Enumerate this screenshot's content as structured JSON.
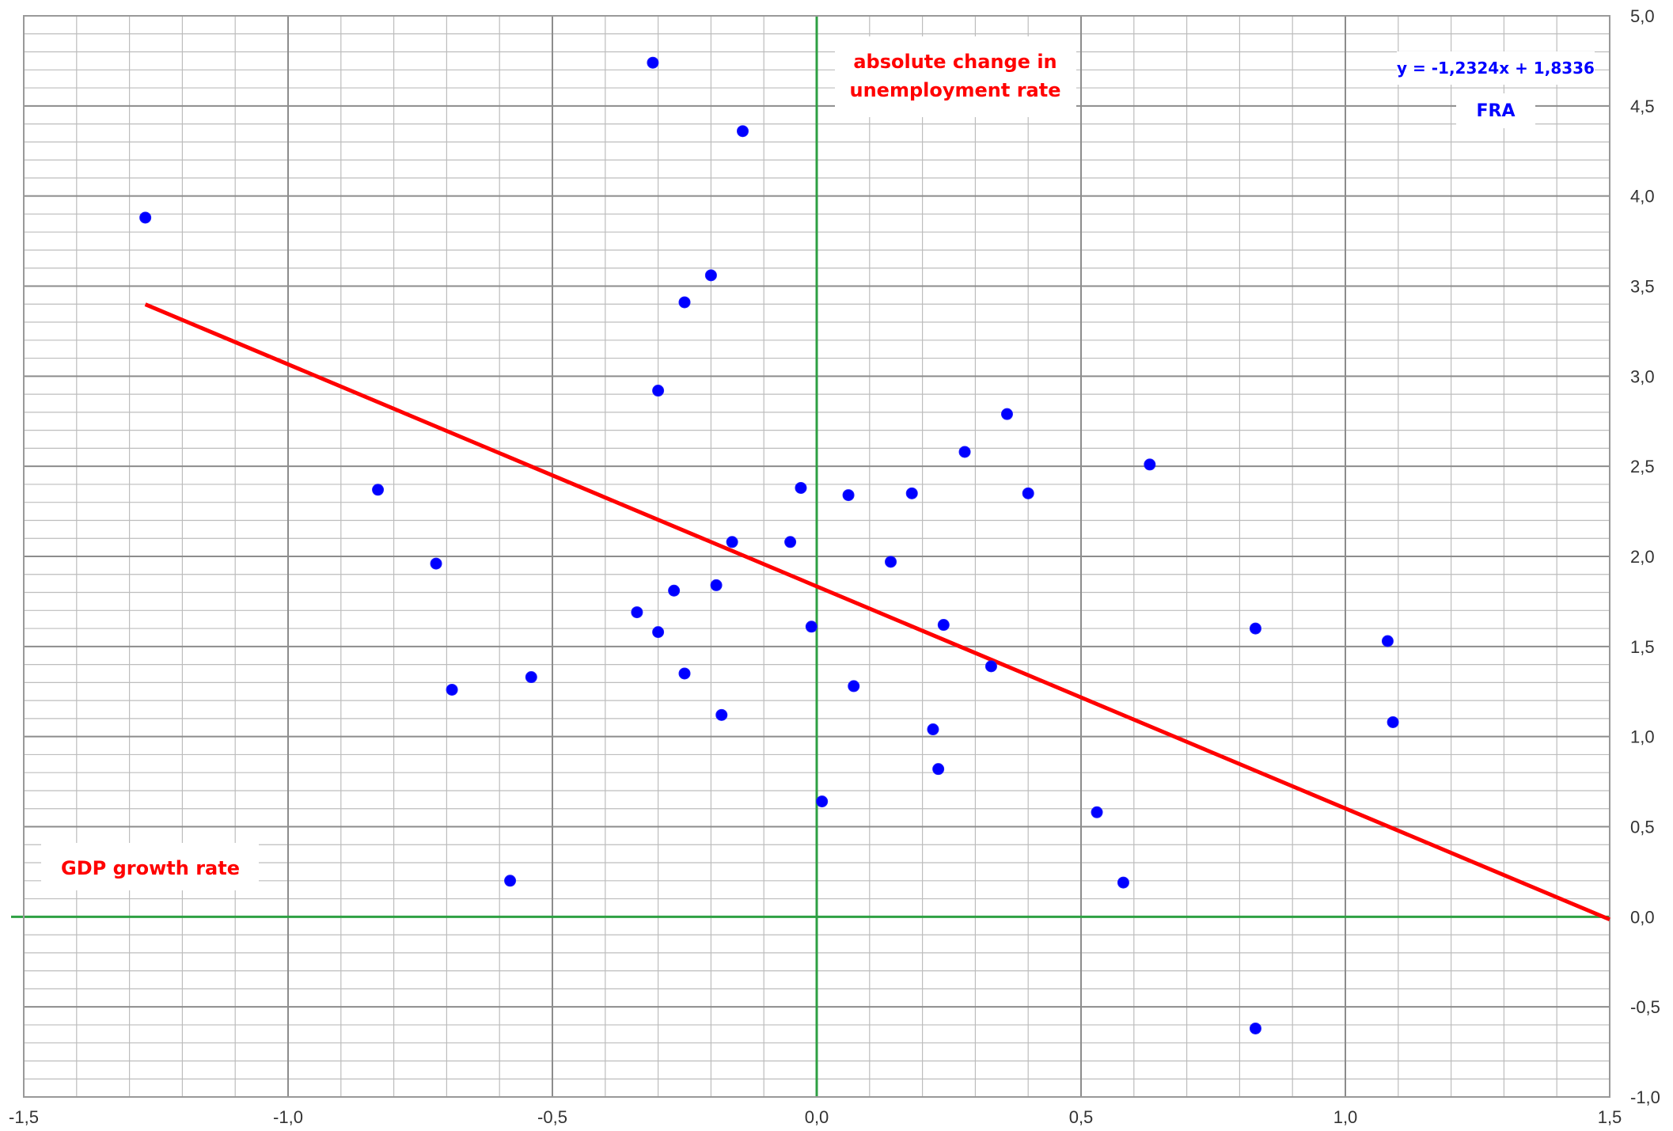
{
  "chart_data": {
    "type": "scatter",
    "title": "",
    "xlabel": "GDP growth rate",
    "ylabel": "absolute change in unemployment rate",
    "xlim": [
      -1.5,
      1.5
    ],
    "ylim": [
      -1.0,
      5.0
    ],
    "x_ticks": [
      "-1,5",
      "-1,0",
      "-0,5",
      "0,0",
      "0,5",
      "1,0",
      "1,5"
    ],
    "y_ticks": [
      "-1,0",
      "-0,5",
      "0,0",
      "0,5",
      "1,0",
      "1,5",
      "2,0",
      "2,5",
      "3,0",
      "3,5",
      "4,0",
      "4,5",
      "5,0"
    ],
    "grid": true,
    "series": [
      {
        "name": "FRA",
        "color": "#0000ff",
        "points": [
          {
            "x": -1.27,
            "y": 3.88
          },
          {
            "x": -0.31,
            "y": 4.74
          },
          {
            "x": -0.14,
            "y": 4.36
          },
          {
            "x": -0.2,
            "y": 3.56
          },
          {
            "x": -0.25,
            "y": 3.41
          },
          {
            "x": -0.3,
            "y": 2.92
          },
          {
            "x": -0.83,
            "y": 2.37
          },
          {
            "x": -0.72,
            "y": 1.96
          },
          {
            "x": -0.69,
            "y": 1.26
          },
          {
            "x": -0.54,
            "y": 1.33
          },
          {
            "x": -0.58,
            "y": 0.2
          },
          {
            "x": -0.34,
            "y": 1.69
          },
          {
            "x": -0.3,
            "y": 1.58
          },
          {
            "x": -0.27,
            "y": 1.81
          },
          {
            "x": -0.25,
            "y": 1.35
          },
          {
            "x": -0.19,
            "y": 1.84
          },
          {
            "x": -0.18,
            "y": 1.12
          },
          {
            "x": -0.16,
            "y": 2.08
          },
          {
            "x": -0.05,
            "y": 2.08
          },
          {
            "x": -0.03,
            "y": 2.38
          },
          {
            "x": -0.01,
            "y": 1.61
          },
          {
            "x": 0.01,
            "y": 0.64
          },
          {
            "x": 0.06,
            "y": 2.34
          },
          {
            "x": 0.07,
            "y": 1.28
          },
          {
            "x": 0.14,
            "y": 1.97
          },
          {
            "x": 0.18,
            "y": 2.35
          },
          {
            "x": 0.22,
            "y": 1.04
          },
          {
            "x": 0.23,
            "y": 0.82
          },
          {
            "x": 0.24,
            "y": 1.62
          },
          {
            "x": 0.28,
            "y": 2.58
          },
          {
            "x": 0.33,
            "y": 1.39
          },
          {
            "x": 0.36,
            "y": 2.79
          },
          {
            "x": 0.4,
            "y": 2.35
          },
          {
            "x": 0.53,
            "y": 0.58
          },
          {
            "x": 0.58,
            "y": 0.19
          },
          {
            "x": 0.63,
            "y": 2.51
          },
          {
            "x": 0.83,
            "y": 1.6
          },
          {
            "x": 0.83,
            "y": -0.62
          },
          {
            "x": 1.08,
            "y": 1.53
          },
          {
            "x": 1.09,
            "y": 1.08
          }
        ]
      }
    ],
    "trendline": {
      "equation": "y = -1,2324x + 1,8336",
      "slope": -1.2324,
      "intercept": 1.8336,
      "x_range": [
        -1.27,
        1.5
      ],
      "color": "#ff0000"
    },
    "series_label": "FRA",
    "axis_color": "#2ea043",
    "text_color_red": "#ff0000",
    "text_color_blue": "#0000ff"
  }
}
